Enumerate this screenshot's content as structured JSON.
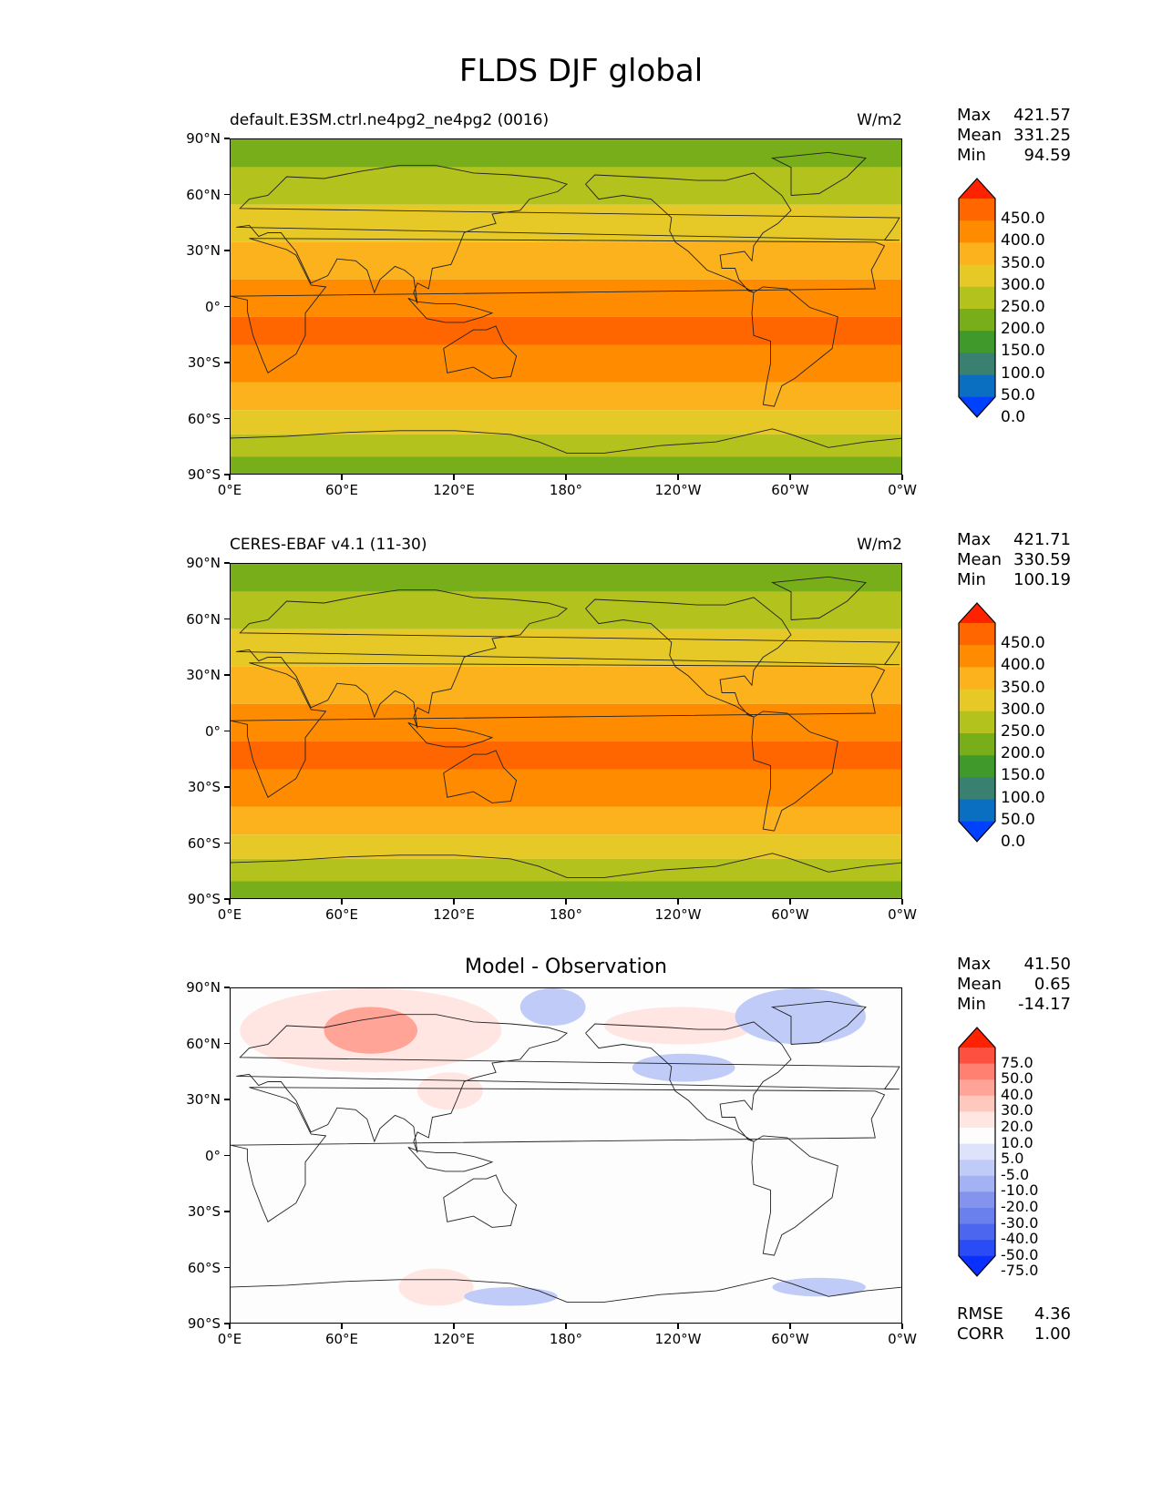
{
  "figure_title": "FLDS DJF global",
  "panels": [
    {
      "left_title": "default.E3SM.ctrl.ne4pg2_ne4pg2 (0016)",
      "units": "W/m2",
      "center_title": "",
      "stats": {
        "max_label": "Max",
        "max": "421.57",
        "mean_label": "Mean",
        "mean": "331.25",
        "min_label": "Min",
        "min": "94.59"
      },
      "colorbar_levels": [
        "450.0",
        "400.0",
        "350.0",
        "300.0",
        "250.0",
        "200.0",
        "150.0",
        "100.0",
        "50.0",
        "0.0"
      ]
    },
    {
      "left_title": "CERES-EBAF v4.1 (11-30)",
      "units": "W/m2",
      "center_title": "",
      "stats": {
        "max_label": "Max",
        "max": "421.71",
        "mean_label": "Mean",
        "mean": "330.59",
        "min_label": "Min",
        "min": "100.19"
      },
      "colorbar_levels": [
        "450.0",
        "400.0",
        "350.0",
        "300.0",
        "250.0",
        "200.0",
        "150.0",
        "100.0",
        "50.0",
        "0.0"
      ]
    },
    {
      "left_title": "",
      "units": "",
      "center_title": "Model - Observation",
      "stats": {
        "max_label": "Max",
        "max": "41.50",
        "mean_label": "Mean",
        "mean": "0.65",
        "min_label": "Min",
        "min": "-14.17"
      },
      "colorbar_levels": [
        "75.0",
        "50.0",
        "40.0",
        "30.0",
        "20.0",
        "10.0",
        "5.0",
        "-5.0",
        "-10.0",
        "-20.0",
        "-30.0",
        "-40.0",
        "-50.0",
        "-75.0"
      ],
      "metrics": {
        "rmse_label": "RMSE",
        "rmse": "4.36",
        "corr_label": "CORR",
        "corr": "1.00"
      }
    }
  ],
  "axes": {
    "lat_ticks": [
      "90°N",
      "60°N",
      "30°N",
      "0°",
      "30°S",
      "60°S",
      "90°S"
    ],
    "lon_ticks": [
      "0°E",
      "60°E",
      "120°E",
      "180°",
      "120°W",
      "60°W",
      "0°W"
    ]
  },
  "colors": {
    "abs_scale": [
      "#ff2200",
      "#ff6600",
      "#ff8c00",
      "#fcb21c",
      "#e6c927",
      "#b4c21d",
      "#77ae1a",
      "#3f9a2b",
      "#3a8070",
      "#0a6fc0",
      "#0040ff"
    ],
    "diff_scale": [
      "#ff2200",
      "#fe5040",
      "#ff8070",
      "#ffa496",
      "#ffc8be",
      "#ffe6e2",
      "#fdfdfd",
      "#dde3fb",
      "#c0ccf7",
      "#a2b2f2",
      "#8494ee",
      "#6a80ec",
      "#4c66f0",
      "#2a4cf6",
      "#0a30ff"
    ]
  },
  "chart_data": [
    {
      "type": "heatmap",
      "title": "default.E3SM.ctrl.ne4pg2_ne4pg2 (0016)",
      "units": "W/m2",
      "xlim": [
        0,
        360
      ],
      "ylim": [
        -90,
        90
      ],
      "levels": [
        0,
        50,
        100,
        150,
        200,
        250,
        300,
        350,
        400,
        450
      ],
      "lat_bands": [
        {
          "lat": [
            75,
            90
          ],
          "value": 180
        },
        {
          "lat": [
            55,
            75
          ],
          "value": 230
        },
        {
          "lat": [
            35,
            55
          ],
          "value": 270
        },
        {
          "lat": [
            15,
            35
          ],
          "value": 330
        },
        {
          "lat": [
            -5,
            15
          ],
          "value": 380
        },
        {
          "lat": [
            -20,
            -5
          ],
          "value": 400
        },
        {
          "lat": [
            -40,
            -20
          ],
          "value": 360
        },
        {
          "lat": [
            -55,
            -40
          ],
          "value": 320
        },
        {
          "lat": [
            -68,
            -55
          ],
          "value": 280
        },
        {
          "lat": [
            -80,
            -68
          ],
          "value": 220
        },
        {
          "lat": [
            -90,
            -80
          ],
          "value": 170
        }
      ],
      "max": 421.57,
      "mean": 331.25,
      "min": 94.59
    },
    {
      "type": "heatmap",
      "title": "CERES-EBAF v4.1 (11-30)",
      "units": "W/m2",
      "xlim": [
        0,
        360
      ],
      "ylim": [
        -90,
        90
      ],
      "levels": [
        0,
        50,
        100,
        150,
        200,
        250,
        300,
        350,
        400,
        450
      ],
      "lat_bands": [
        {
          "lat": [
            75,
            90
          ],
          "value": 175
        },
        {
          "lat": [
            55,
            75
          ],
          "value": 225
        },
        {
          "lat": [
            35,
            55
          ],
          "value": 270
        },
        {
          "lat": [
            15,
            35
          ],
          "value": 330
        },
        {
          "lat": [
            -5,
            15
          ],
          "value": 380
        },
        {
          "lat": [
            -20,
            -5
          ],
          "value": 400
        },
        {
          "lat": [
            -40,
            -20
          ],
          "value": 360
        },
        {
          "lat": [
            -55,
            -40
          ],
          "value": 320
        },
        {
          "lat": [
            -68,
            -55
          ],
          "value": 285
        },
        {
          "lat": [
            -80,
            -68
          ],
          "value": 230
        },
        {
          "lat": [
            -90,
            -80
          ],
          "value": 180
        }
      ],
      "max": 421.71,
      "mean": 330.59,
      "min": 100.19
    },
    {
      "type": "heatmap",
      "title": "Model - Observation",
      "xlim": [
        0,
        360
      ],
      "ylim": [
        -90,
        90
      ],
      "levels": [
        -75,
        -50,
        -40,
        -30,
        -20,
        -10,
        -5,
        5,
        10,
        20,
        30,
        40,
        50,
        75
      ],
      "anomalies": [
        {
          "lon": [
            5,
            145
          ],
          "lat": [
            45,
            90
          ],
          "value": 15
        },
        {
          "lon": [
            50,
            100
          ],
          "lat": [
            55,
            80
          ],
          "value": 30
        },
        {
          "lon": [
            100,
            135
          ],
          "lat": [
            25,
            45
          ],
          "value": 10
        },
        {
          "lon": [
            155,
            190
          ],
          "lat": [
            70,
            90
          ],
          "value": -7
        },
        {
          "lon": [
            200,
            280
          ],
          "lat": [
            60,
            80
          ],
          "value": 12
        },
        {
          "lon": [
            270,
            340
          ],
          "lat": [
            60,
            90
          ],
          "value": -8
        },
        {
          "lon": [
            215,
            270
          ],
          "lat": [
            40,
            55
          ],
          "value": -7
        },
        {
          "lon": [
            90,
            130
          ],
          "lat": [
            -80,
            -60
          ],
          "value": 15
        },
        {
          "lon": [
            125,
            175
          ],
          "lat": [
            -80,
            -70
          ],
          "value": -7
        },
        {
          "lon": [
            290,
            340
          ],
          "lat": [
            -75,
            -65
          ],
          "value": -10
        }
      ],
      "max": 41.5,
      "mean": 0.65,
      "min": -14.17,
      "rmse": 4.36,
      "corr": 1.0
    }
  ]
}
